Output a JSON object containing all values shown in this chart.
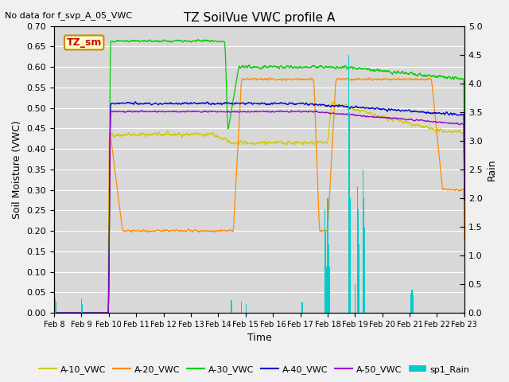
{
  "title": "TZ SoilVue VWC profile A",
  "no_data_text": "No data for f_svp_A_05_VWC",
  "annotation_text": "TZ_sm",
  "xlabel": "Time",
  "ylabel_left": "Soil Moisture (VWC)",
  "ylabel_right": "Rain",
  "ylim_left": [
    0.0,
    0.7
  ],
  "ylim_right": [
    0.0,
    5.0
  ],
  "yticks_left": [
    0.0,
    0.05,
    0.1,
    0.15,
    0.2,
    0.25,
    0.3,
    0.35,
    0.4,
    0.45,
    0.5,
    0.55,
    0.6,
    0.65,
    0.7
  ],
  "yticks_right": [
    0.0,
    0.5,
    1.0,
    1.5,
    2.0,
    2.5,
    3.0,
    3.5,
    4.0,
    4.5,
    5.0
  ],
  "colors": {
    "A10": "#cccc00",
    "A20": "#ff8c00",
    "A30": "#00cc00",
    "A40": "#0000cc",
    "A50": "#9900cc",
    "rain": "#00cccc",
    "annotation_bg": "#ffffcc",
    "annotation_text": "#cc0000",
    "annotation_border": "#cc8800"
  },
  "plot_bg": "#d8d8d8",
  "fig_bg": "#f0f0f0",
  "grid_color": "#ffffff",
  "xtick_labels": [
    "Feb 8",
    "Feb 9",
    "Feb 10",
    "Feb 11",
    "Feb 12",
    "Feb 13",
    "Feb 14",
    "Feb 15",
    "Feb 16",
    "Feb 17",
    "Feb 18",
    "Feb 19",
    "Feb 20",
    "Feb 21",
    "Feb 22",
    "Feb 23"
  ]
}
